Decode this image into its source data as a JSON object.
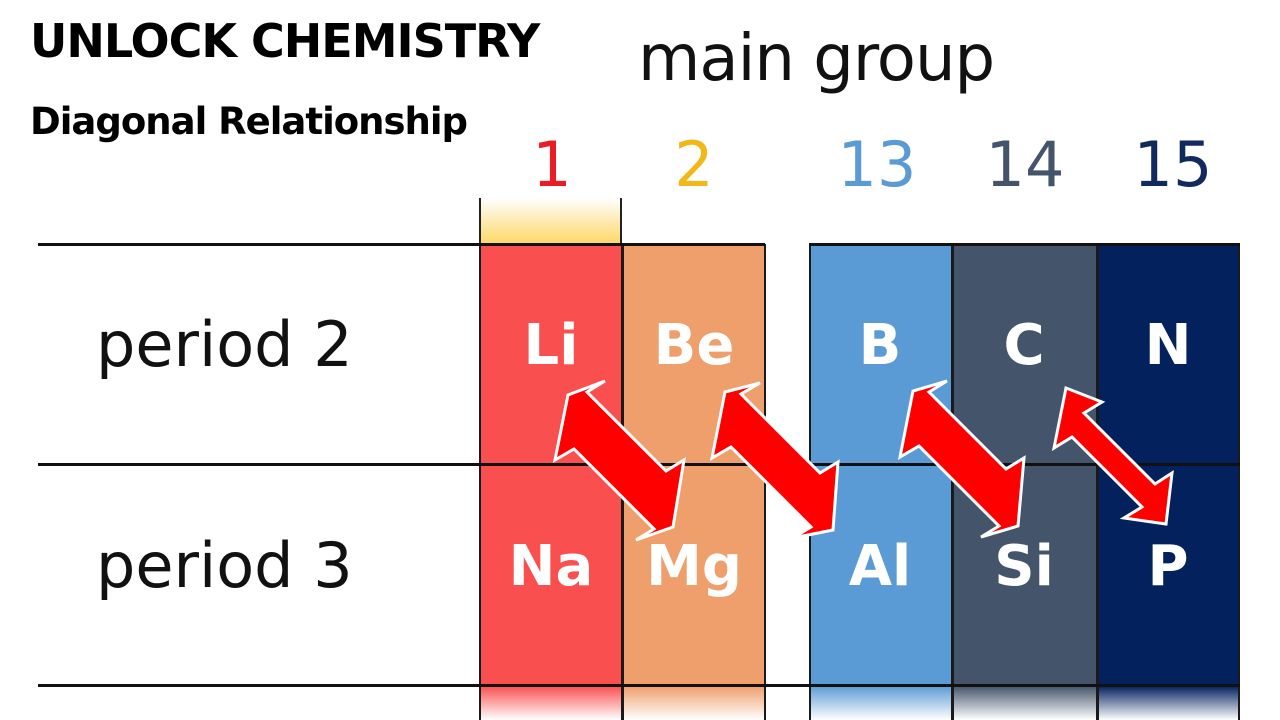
{
  "brand": "UNLOCK CHEMISTRY",
  "subtitle": "Diagonal Relationship",
  "heading": "main group",
  "groups": [
    {
      "number": "1",
      "color": "#ea1c24",
      "fill": "#fa4f4f"
    },
    {
      "number": "2",
      "color": "#f2b81a",
      "fill": "#ee9f6b"
    },
    {
      "number": "13",
      "color": "#5b9bd5",
      "fill": "#5b9bd5"
    },
    {
      "number": "14",
      "color": "#44546a",
      "fill": "#44546a"
    },
    {
      "number": "15",
      "color": "#112a5e",
      "fill": "#03215d"
    }
  ],
  "periods": [
    {
      "label": "period 2",
      "elements": [
        "Li",
        "Be",
        "B",
        "C",
        "N"
      ]
    },
    {
      "label": "period 3",
      "elements": [
        "Na",
        "Mg",
        "Al",
        "Si",
        "P"
      ]
    }
  ],
  "arrow_color": "#ff0000",
  "diagonal_pairs": [
    [
      "Li",
      "Mg"
    ],
    [
      "Be",
      "Al"
    ],
    [
      "B",
      "Si"
    ],
    [
      "C",
      "P"
    ]
  ]
}
